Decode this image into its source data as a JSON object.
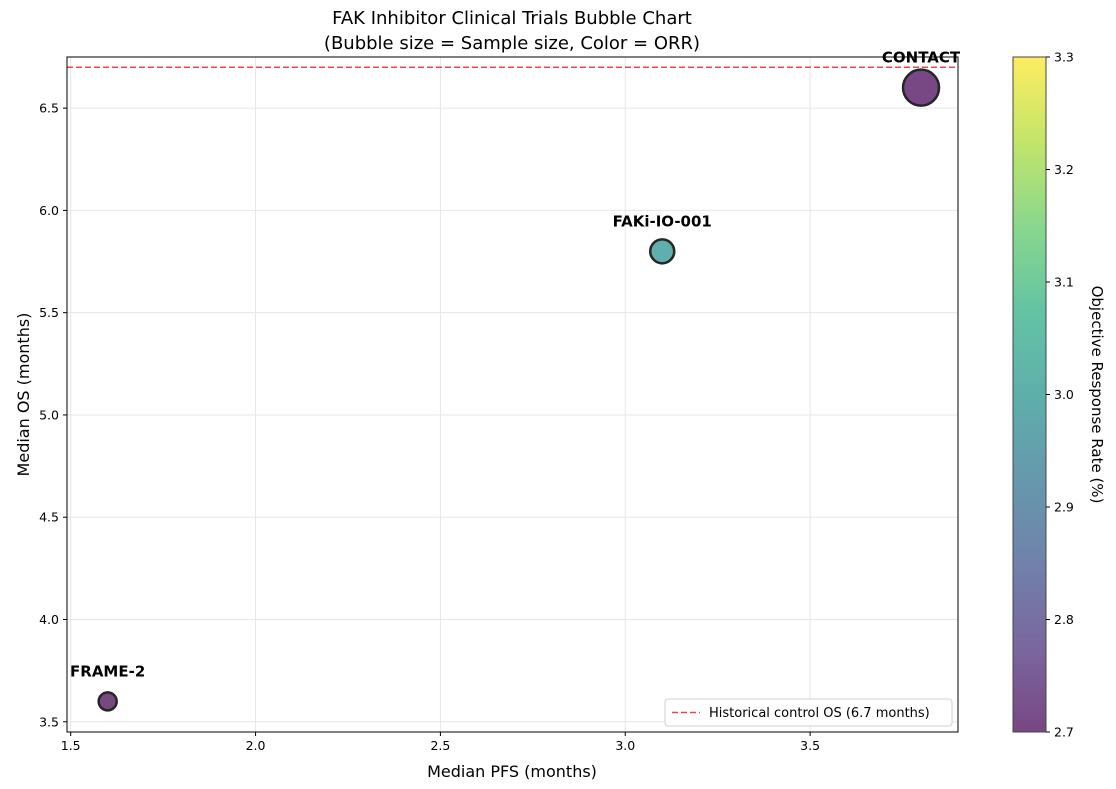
{
  "chart_data": {
    "type": "scatter",
    "title_line1": "FAK Inhibitor Clinical Trials Bubble Chart",
    "title_line2": "(Bubble size = Sample size, Color = ORR)",
    "xlabel": "Median PFS (months)",
    "ylabel": "Median OS (months)",
    "xlim": [
      1.49,
      3.9
    ],
    "ylim": [
      3.45,
      6.75
    ],
    "xticks": [
      "1.5",
      "2.0",
      "2.5",
      "3.0",
      "3.5"
    ],
    "yticks": [
      "3.5",
      "4.0",
      "4.5",
      "5.0",
      "5.5",
      "6.0",
      "6.5"
    ],
    "grid": true,
    "points": [
      {
        "label": "FRAME-2",
        "x": 1.6,
        "y": 3.6,
        "orr": 2.7,
        "color": "#440154"
      },
      {
        "label": "FAKi-IO-001",
        "x": 3.1,
        "y": 5.8,
        "orr": 3.0,
        "color": "#21918c"
      },
      {
        "label": "CONTACT",
        "x": 3.8,
        "y": 6.6,
        "orr": 2.7,
        "color": "#440154"
      }
    ],
    "reference_line": {
      "y": 6.7,
      "color": "#e8292b",
      "label": "Historical control OS (6.7 months)"
    },
    "legend_position": "lower-right",
    "colorbar": {
      "label": "Objective Response Rate (%)",
      "range": [
        2.7,
        3.3
      ],
      "ticks": [
        "2.7",
        "2.8",
        "2.9",
        "3.0",
        "3.1",
        "3.2",
        "3.3"
      ],
      "colormap": "viridis"
    }
  }
}
